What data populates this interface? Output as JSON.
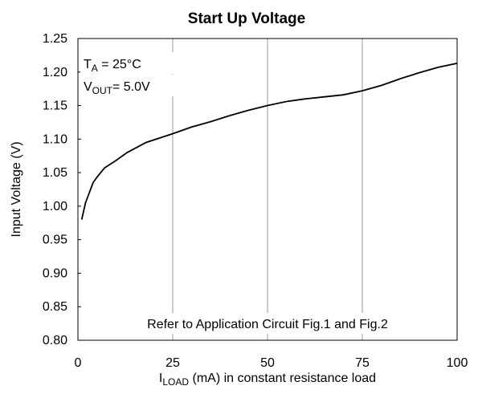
{
  "chart_data": {
    "type": "line",
    "title": "Start Up Voltage",
    "ylabel": "Input Voltage (V)",
    "xlabel": {
      "main": "I",
      "sub": "LOAD",
      "rest": " (mA) in constant resistance load"
    },
    "annotations": [
      {
        "main": "T",
        "sub": "A",
        "rest": " = 25°C"
      },
      {
        "main": "V",
        "sub": "OUT",
        "rest": "= 5.0V"
      },
      {
        "text": "Refer to Application Circuit Fig.1 and Fig.2"
      }
    ],
    "x": [
      1,
      2,
      3,
      4,
      5,
      7,
      10,
      13,
      18,
      25,
      30,
      35,
      40,
      45,
      50,
      55,
      60,
      65,
      70,
      75,
      80,
      85,
      90,
      95,
      100
    ],
    "series": [
      {
        "name": "Input Voltage",
        "color": "#000000",
        "values": [
          0.98,
          1.005,
          1.02,
          1.035,
          1.043,
          1.057,
          1.068,
          1.08,
          1.095,
          1.108,
          1.118,
          1.126,
          1.135,
          1.143,
          1.15,
          1.156,
          1.16,
          1.163,
          1.166,
          1.172,
          1.18,
          1.19,
          1.199,
          1.207,
          1.213
        ]
      }
    ],
    "xlim": [
      0,
      100
    ],
    "xticks": [
      0,
      25,
      50,
      75,
      100
    ],
    "ylim": [
      0.8,
      1.25
    ],
    "yticks": [
      {
        "value": 0.8,
        "label": "0.80"
      },
      {
        "value": 0.85,
        "label": "0.85"
      },
      {
        "value": 0.9,
        "label": "0.90"
      },
      {
        "value": 0.95,
        "label": "0.95"
      },
      {
        "value": 1.0,
        "label": "1.00"
      },
      {
        "value": 1.05,
        "label": "1.05"
      },
      {
        "value": 1.1,
        "label": "1.10"
      },
      {
        "value": 1.15,
        "label": "1.15"
      },
      {
        "value": 1.2,
        "label": "1.20"
      },
      {
        "value": 1.25,
        "label": "1.25"
      }
    ],
    "grid": "x"
  }
}
